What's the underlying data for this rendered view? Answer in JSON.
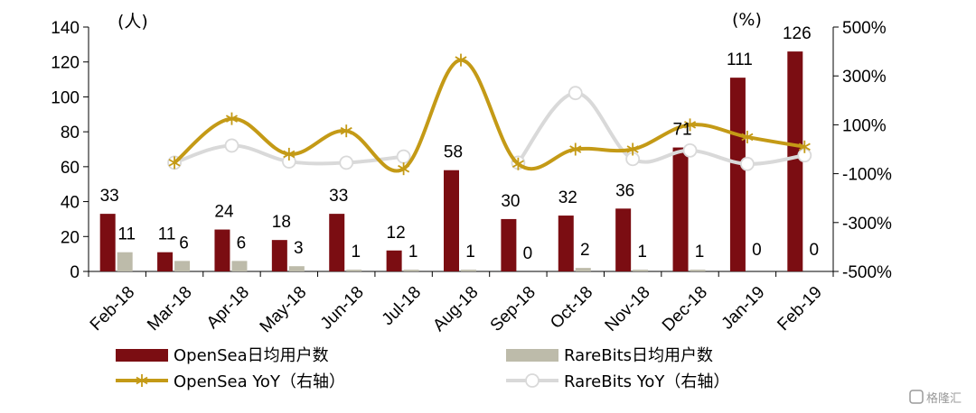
{
  "chart_data": {
    "type": "bar",
    "categories": [
      "Feb-18",
      "Mar-18",
      "Apr-18",
      "May-18",
      "Jun-18",
      "Jul-18",
      "Aug-18",
      "Sep-18",
      "Oct-18",
      "Nov-18",
      "Dec-18",
      "Jan-19",
      "Feb-19"
    ],
    "left_axis": {
      "unit": "(人)",
      "range": [
        0,
        140
      ],
      "ticks": [
        "0",
        "20",
        "40",
        "60",
        "80",
        "100",
        "120",
        "140"
      ]
    },
    "right_axis": {
      "unit": "(%)",
      "range": [
        -500,
        500
      ],
      "ticks": [
        "-500%",
        "-300%",
        "-100%",
        "100%",
        "300%",
        "500%"
      ]
    },
    "bars": [
      {
        "name": "OpenSea日均用户数",
        "color": "#7B0D12",
        "values": [
          33,
          11,
          24,
          18,
          33,
          12,
          58,
          30,
          32,
          36,
          71,
          111,
          126
        ],
        "labels": [
          "33",
          "11",
          "24",
          "18",
          "33",
          "12",
          "58",
          "30",
          "32",
          "36",
          "71",
          "111",
          "126"
        ]
      },
      {
        "name": "RareBits日均用户数",
        "color": "#BDBBAA",
        "values": [
          11,
          6,
          6,
          3,
          1,
          1,
          1,
          0,
          2,
          1,
          1,
          0,
          0
        ],
        "labels": [
          "11",
          "6",
          "6",
          "3",
          "1",
          "1",
          "1",
          "0",
          "2",
          "1",
          "1",
          "0",
          "0"
        ]
      }
    ],
    "lines": [
      {
        "name": "OpenSea YoY（右轴）",
        "color": "#C49A16",
        "marker": "asterisk",
        "values": [
          null,
          -55,
          125,
          -20,
          75,
          -80,
          365,
          -60,
          0,
          0,
          100,
          50,
          10
        ]
      },
      {
        "name": "RareBits YoY（右轴）",
        "color": "#D9D9D9",
        "marker": "circle",
        "values": [
          null,
          -55,
          15,
          -50,
          -55,
          -30,
          null,
          -55,
          230,
          -40,
          -5,
          -60,
          -25
        ]
      }
    ],
    "legend": "bottom"
  },
  "watermark": "格隆汇"
}
